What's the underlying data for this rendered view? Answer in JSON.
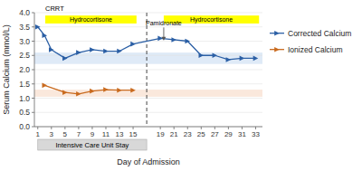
{
  "chart_data": {
    "type": "line",
    "x_label": "Day of Admission",
    "y_label": "Serum Calcium (mmol/L)",
    "series": [
      {
        "name": "Corrected Calcium",
        "color": "#2B5FA5",
        "marker": "triangle-right",
        "x": [
          1,
          2,
          3,
          5,
          7,
          9,
          11,
          13,
          15,
          19,
          21,
          23,
          25,
          27,
          29,
          31,
          33
        ],
        "values": [
          3.5,
          3.2,
          2.7,
          2.4,
          2.6,
          2.7,
          2.65,
          2.65,
          2.9,
          3.1,
          3.05,
          3.0,
          2.5,
          2.5,
          2.35,
          2.4,
          2.4
        ]
      },
      {
        "name": "Ionized Calcium",
        "color": "#C96A1E",
        "marker": "triangle-right",
        "x": [
          2,
          5,
          7,
          9,
          11,
          13,
          15
        ],
        "values": [
          1.45,
          1.2,
          1.15,
          1.25,
          1.3,
          1.28,
          1.28
        ]
      }
    ],
    "bands": [
      {
        "low": 2.2,
        "high": 2.6,
        "color": "#C5D8F0"
      },
      {
        "low": 1.05,
        "high": 1.3,
        "color": "#F5D5C0"
      }
    ],
    "vlines": [
      {
        "x": 17,
        "line_style": "dashed"
      }
    ],
    "annotations": [
      {
        "type": "box",
        "text": "Hydrocortisone",
        "x_start": 2.1,
        "x_end": 15.5,
        "y": 3.62,
        "height": 0.28,
        "color": "#FFFF00"
      },
      {
        "type": "box",
        "text": "Hydrocortisone",
        "x_start": 19.5,
        "x_end": 33.5,
        "y": 3.62,
        "height": 0.28,
        "color": "#FFFF00"
      },
      {
        "type": "text",
        "text": "CRRT",
        "x": 2.1,
        "y": 4.03
      },
      {
        "type": "arrow",
        "text": "Pamidronate",
        "x": 19.5,
        "y": 3.02,
        "text_y": 3.48
      },
      {
        "type": "span",
        "text": "Intensive Care Unit Stay",
        "x_start": 1,
        "x_end": 17
      }
    ],
    "xlim": [
      0.5,
      34.0
    ],
    "ylim": [
      0,
      4.0
    ],
    "xticks": [
      1,
      3,
      5,
      7,
      9,
      11,
      13,
      15,
      19,
      21,
      23,
      25,
      27,
      29,
      31,
      33
    ],
    "yticks": [
      {
        "value": 0,
        "label": "0.0"
      },
      0.5,
      {
        "value": 1.0,
        "label": "1.0"
      },
      1.5,
      {
        "value": 2.0,
        "label": "2.0"
      },
      2.5,
      {
        "value": 3.0,
        "label": "3.0"
      },
      3.5,
      {
        "value": 4.0,
        "label": "4.0"
      }
    ],
    "grid": true,
    "legend": "right"
  }
}
